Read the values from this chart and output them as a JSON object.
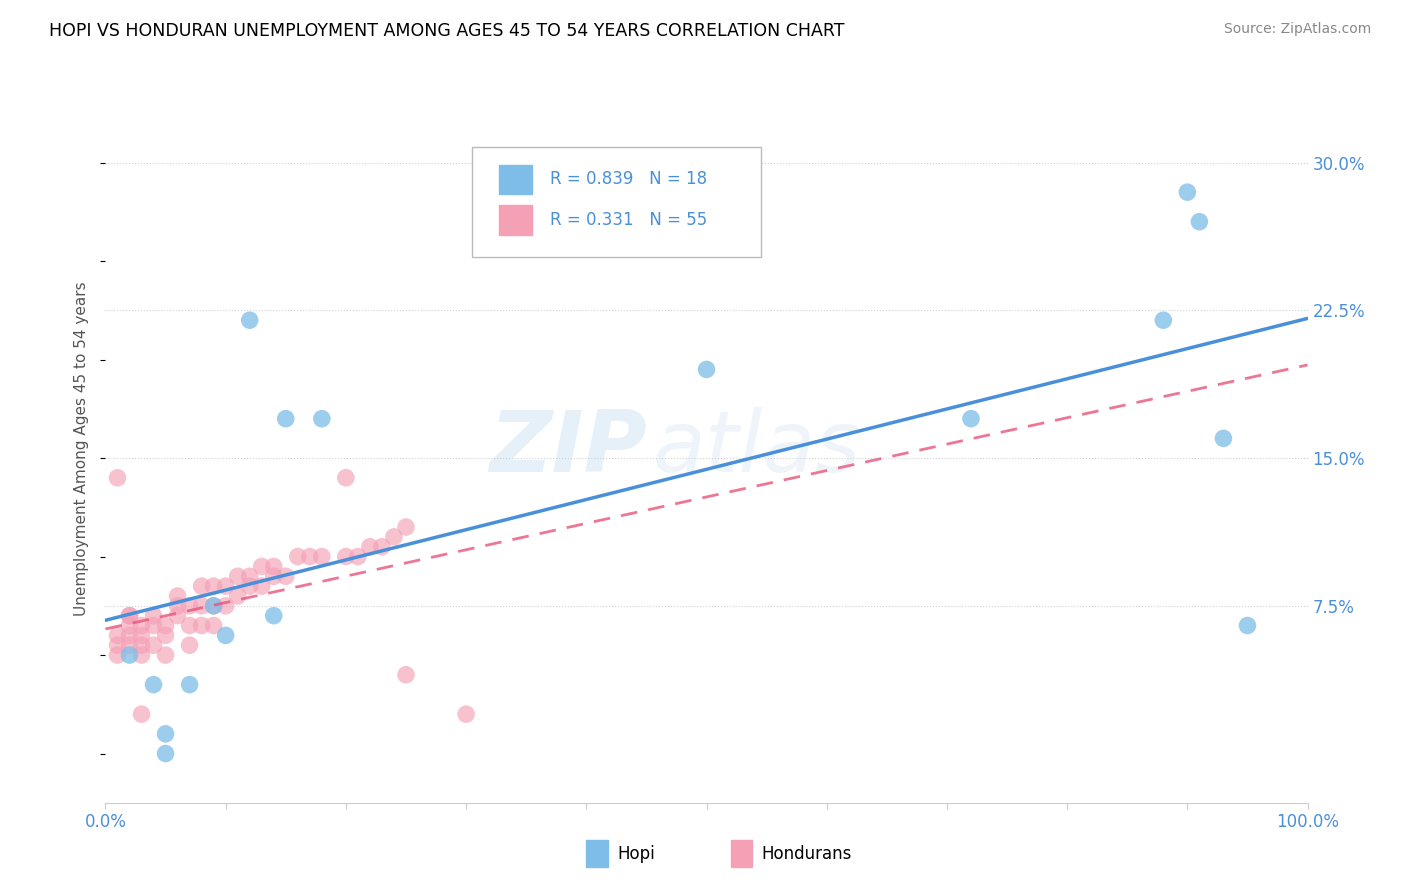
{
  "title": "HOPI VS HONDURAN UNEMPLOYMENT AMONG AGES 45 TO 54 YEARS CORRELATION CHART",
  "source": "Source: ZipAtlas.com",
  "ylabel": "Unemployment Among Ages 45 to 54 years",
  "ytick_labels": [
    "",
    "7.5%",
    "15.0%",
    "22.5%",
    "30.0%"
  ],
  "ytick_values": [
    0,
    0.075,
    0.15,
    0.225,
    0.3
  ],
  "xlim": [
    0,
    1.0
  ],
  "ylim": [
    -0.025,
    0.335
  ],
  "hopi_R": 0.839,
  "hopi_N": 18,
  "honduran_R": 0.331,
  "honduran_N": 55,
  "hopi_color": "#7dbde8",
  "honduran_color": "#f4a0b5",
  "hopi_line_color": "#4a90d9",
  "honduran_line_color": "#e8547a",
  "legend_text_color": "#4a90d9",
  "watermark": "ZIPatlas",
  "hopi_x": [
    0.02,
    0.04,
    0.05,
    0.07,
    0.09,
    0.1,
    0.12,
    0.15,
    0.18,
    0.5,
    0.72,
    0.88,
    0.9,
    0.91,
    0.93,
    0.95,
    0.05,
    0.14
  ],
  "hopi_y": [
    0.05,
    0.035,
    0.01,
    0.035,
    0.075,
    0.06,
    0.22,
    0.17,
    0.17,
    0.195,
    0.17,
    0.22,
    0.285,
    0.27,
    0.16,
    0.065,
    0.0,
    0.07
  ],
  "honduran_x": [
    0.01,
    0.01,
    0.01,
    0.02,
    0.02,
    0.02,
    0.02,
    0.03,
    0.03,
    0.03,
    0.03,
    0.04,
    0.04,
    0.04,
    0.05,
    0.05,
    0.05,
    0.06,
    0.06,
    0.06,
    0.07,
    0.07,
    0.07,
    0.08,
    0.08,
    0.08,
    0.09,
    0.09,
    0.09,
    0.1,
    0.1,
    0.11,
    0.11,
    0.12,
    0.12,
    0.13,
    0.13,
    0.14,
    0.14,
    0.15,
    0.16,
    0.17,
    0.18,
    0.2,
    0.2,
    0.21,
    0.22,
    0.23,
    0.24,
    0.25,
    0.01,
    0.02,
    0.03,
    0.25,
    0.3
  ],
  "honduran_y": [
    0.055,
    0.06,
    0.05,
    0.055,
    0.06,
    0.065,
    0.07,
    0.05,
    0.055,
    0.06,
    0.065,
    0.055,
    0.065,
    0.07,
    0.05,
    0.06,
    0.065,
    0.07,
    0.075,
    0.08,
    0.055,
    0.065,
    0.075,
    0.065,
    0.075,
    0.085,
    0.065,
    0.075,
    0.085,
    0.075,
    0.085,
    0.08,
    0.09,
    0.085,
    0.09,
    0.085,
    0.095,
    0.09,
    0.095,
    0.09,
    0.1,
    0.1,
    0.1,
    0.1,
    0.14,
    0.1,
    0.105,
    0.105,
    0.11,
    0.115,
    0.14,
    0.07,
    0.02,
    0.04,
    0.02
  ]
}
